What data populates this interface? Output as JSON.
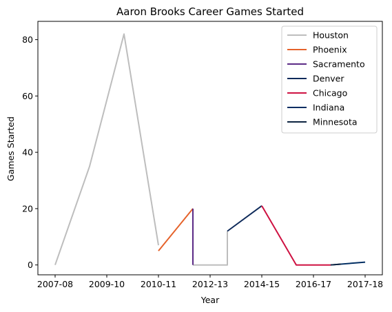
{
  "chart_data": {
    "type": "line",
    "title": "Aaron Brooks  Career Games Started",
    "xlabel": "Year",
    "ylabel": "Games Started",
    "xlim": [
      -0.5,
      9.5
    ],
    "ylim": [
      -3.5,
      86.5
    ],
    "x_ticks": [
      {
        "pos": 0,
        "label": "2007-08"
      },
      {
        "pos": 1.5,
        "label": "2009-10"
      },
      {
        "pos": 3,
        "label": "2010-11"
      },
      {
        "pos": 4.5,
        "label": "2012-13"
      },
      {
        "pos": 6,
        "label": "2014-15"
      },
      {
        "pos": 7.5,
        "label": "2016-17"
      },
      {
        "pos": 9,
        "label": "2017-18"
      }
    ],
    "y_ticks": [
      0,
      20,
      40,
      60,
      80
    ],
    "grid": false,
    "legend_position": "top-right",
    "series": [
      {
        "name": "Houston",
        "color": "#bdbdbd",
        "segments": [
          [
            [
              0,
              0
            ],
            [
              1,
              35
            ],
            [
              2,
              82
            ],
            [
              3,
              7
            ]
          ],
          [
            [
              4,
              0
            ],
            [
              5,
              0
            ],
            [
              5,
              12
            ]
          ]
        ]
      },
      {
        "name": "Phoenix",
        "color": "#e5622a",
        "segments": [
          [
            [
              3,
              5
            ],
            [
              4,
              20
            ]
          ]
        ]
      },
      {
        "name": "Sacramento",
        "color": "#5b2a86",
        "segments": [
          [
            [
              4,
              20
            ],
            [
              4,
              0
            ]
          ]
        ]
      },
      {
        "name": "Denver",
        "color": "#0e2a5a",
        "segments": [
          [
            [
              5,
              12
            ],
            [
              6,
              21
            ]
          ]
        ]
      },
      {
        "name": "Chicago",
        "color": "#ce1141",
        "segments": [
          [
            [
              6,
              21
            ],
            [
              7,
              0
            ],
            [
              8,
              0
            ]
          ]
        ]
      },
      {
        "name": "Indiana",
        "color": "#002d62",
        "segments": [
          [
            [
              8,
              0
            ],
            [
              9,
              1
            ]
          ]
        ]
      },
      {
        "name": "Minnesota",
        "color": "#0c2340",
        "segments": [
          [
            [
              8,
              0
            ],
            [
              8.3,
              0.3
            ]
          ]
        ]
      }
    ]
  }
}
